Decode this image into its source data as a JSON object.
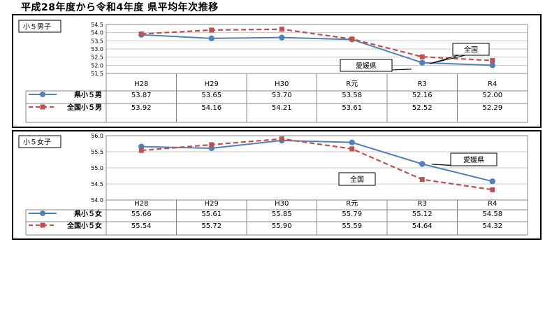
{
  "title": "平成28年度から令和4年度 県平均年次推移",
  "colors": {
    "pref": "#4f81bd",
    "national": "#c0504d",
    "grid": "#c8c8c8"
  },
  "chart_data": [
    {
      "type": "line",
      "panel_label": "小５男子",
      "categories": [
        "H28",
        "H29",
        "H30",
        "R元",
        "R3",
        "R4"
      ],
      "yticks": [
        "54.5",
        "54.0",
        "53.5",
        "53.0",
        "52.5",
        "52.0",
        "51.5"
      ],
      "ylim": [
        51.5,
        54.5
      ],
      "grid": true,
      "series": [
        {
          "name": "県小５男",
          "style": "solid-circle",
          "values": [
            53.87,
            53.65,
            53.7,
            53.58,
            52.16,
            52.0
          ],
          "labels": [
            "53.87",
            "53.65",
            "53.70",
            "53.58",
            "52.16",
            "52.00"
          ]
        },
        {
          "name": "全国小５男",
          "style": "dashed-square",
          "values": [
            53.92,
            54.16,
            54.21,
            53.61,
            52.52,
            52.29
          ],
          "labels": [
            "53.92",
            "54.16",
            "54.21",
            "53.61",
            "52.52",
            "52.29"
          ]
        }
      ],
      "callouts": [
        "全国",
        "愛媛県"
      ]
    },
    {
      "type": "line",
      "panel_label": "小５女子",
      "categories": [
        "H28",
        "H29",
        "H30",
        "R元",
        "R3",
        "R4"
      ],
      "yticks": [
        "56.0",
        "55.5",
        "55.0",
        "54.5",
        "54.0"
      ],
      "ylim": [
        54.0,
        56.0
      ],
      "grid": true,
      "series": [
        {
          "name": "県小５女",
          "style": "solid-circle",
          "values": [
            55.66,
            55.61,
            55.85,
            55.79,
            55.12,
            54.58
          ],
          "labels": [
            "55.66",
            "55.61",
            "55.85",
            "55.79",
            "55.12",
            "54.58"
          ]
        },
        {
          "name": "全国小５女",
          "style": "dashed-square",
          "values": [
            55.54,
            55.72,
            55.9,
            55.59,
            54.64,
            54.32
          ],
          "labels": [
            "55.54",
            "55.72",
            "55.90",
            "55.59",
            "54.64",
            "54.32"
          ]
        }
      ],
      "callouts": [
        "愛媛県",
        "全国"
      ]
    }
  ]
}
